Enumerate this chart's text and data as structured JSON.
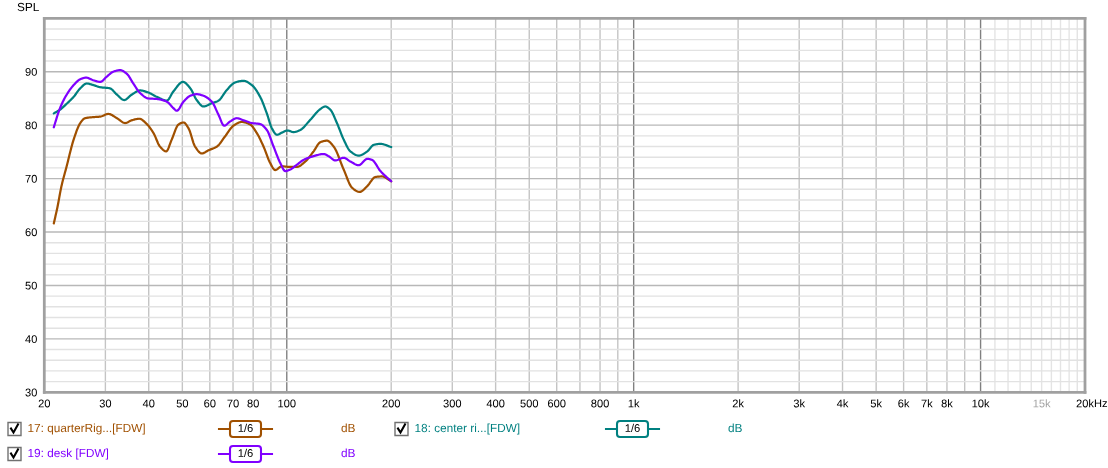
{
  "chart_data": {
    "type": "line",
    "ylabel": "SPL",
    "xlabel": "Hz",
    "xlim": [
      20,
      20000
    ],
    "ylim": [
      30,
      100
    ],
    "log": "x",
    "grid": true,
    "legend": "bottom",
    "xticks": [
      20,
      30,
      40,
      50,
      60,
      70,
      80,
      {
        "value": 90,
        "label": null
      },
      100,
      200,
      300,
      400,
      500,
      600,
      {
        "value": 700,
        "label": null
      },
      800,
      {
        "value": 900,
        "label": null
      },
      {
        "value": 1000,
        "label": "1k"
      },
      {
        "value": 2000,
        "label": "2k"
      },
      {
        "value": 3000,
        "label": "3k"
      },
      {
        "value": 4000,
        "label": "4k"
      },
      {
        "value": 5000,
        "label": "5k"
      },
      {
        "value": 6000,
        "label": "6k"
      },
      {
        "value": 7000,
        "label": "7k"
      },
      {
        "value": 8000,
        "label": "8k"
      },
      {
        "value": 9000,
        "label": null
      },
      {
        "value": 10000,
        "label": "10k"
      },
      {
        "value": 11000,
        "label": null
      },
      {
        "value": 12000,
        "label": null
      },
      {
        "value": 13000,
        "label": null
      },
      {
        "value": 14000,
        "label": null
      },
      {
        "value": 15000,
        "label": "15k"
      },
      {
        "value": 16000,
        "label": null
      },
      {
        "value": 17000,
        "label": null
      },
      {
        "value": 18000,
        "label": null
      },
      {
        "value": 19000,
        "label": null
      },
      {
        "value": 20000,
        "label": "20k"
      }
    ],
    "yticks": [
      30,
      {
        "value": 32,
        "label": null
      },
      {
        "value": 34,
        "label": null
      },
      {
        "value": 36,
        "label": null
      },
      {
        "value": 38,
        "label": null
      },
      40,
      {
        "value": 42,
        "label": null
      },
      {
        "value": 44,
        "label": null
      },
      {
        "value": 46,
        "label": null
      },
      {
        "value": 48,
        "label": null
      },
      50,
      {
        "value": 52,
        "label": null
      },
      {
        "value": 54,
        "label": null
      },
      {
        "value": 56,
        "label": null
      },
      {
        "value": 58,
        "label": null
      },
      60,
      {
        "value": 62,
        "label": null
      },
      {
        "value": 64,
        "label": null
      },
      {
        "value": 66,
        "label": null
      },
      {
        "value": 68,
        "label": null
      },
      70,
      {
        "value": 72,
        "label": null
      },
      {
        "value": 74,
        "label": null
      },
      {
        "value": 76,
        "label": null
      },
      {
        "value": 78,
        "label": null
      },
      80,
      {
        "value": 82,
        "label": null
      },
      {
        "value": 84,
        "label": null
      },
      {
        "value": 86,
        "label": null
      },
      {
        "value": 88,
        "label": null
      },
      90,
      {
        "value": 92,
        "label": null
      },
      {
        "value": 94,
        "label": null
      },
      {
        "value": 96,
        "label": null
      },
      {
        "value": 98,
        "label": null
      }
    ],
    "annotations": [
      "1/6",
      "dB",
      "1/6",
      "dB",
      "1/6",
      "dB"
    ],
    "series": [
      {
        "name": "17: quarterRig...[FDW]",
        "color": "#a05000",
        "x": [
          21.3,
          21.8,
          22.4,
          23.2,
          24.3,
          25.4,
          26.2,
          27.7,
          29.0,
          30.6,
          32.4,
          34.2,
          35.7,
          37.6,
          39.5,
          41.3,
          43.1,
          44.9,
          46.6,
          48.7,
          50.4,
          52.1,
          54.4,
          56.9,
          59.5,
          62.9,
          66.4,
          70.2,
          74.2,
          78.5,
          82.0,
          85.7,
          89.6,
          92.6,
          96.8,
          101.2,
          107.0,
          113.1,
          119.5,
          124.9,
          130.6,
          136.5,
          145.9,
          154.2,
          162.2,
          170.7,
          180.0,
          188.2,
          200
        ],
        "values": [
          61.6,
          64.5,
          68.5,
          72.3,
          77.3,
          80.4,
          81.3,
          81.5,
          81.6,
          82.1,
          81.3,
          80.4,
          80.9,
          81.2,
          80.2,
          78.5,
          76.0,
          75.1,
          77.3,
          80.1,
          80.5,
          79.4,
          76.0,
          74.7,
          75.3,
          76.0,
          77.9,
          79.9,
          80.6,
          80.1,
          78.5,
          76.0,
          72.9,
          71.6,
          72.3,
          72.2,
          72.2,
          73.2,
          75.1,
          76.8,
          77.1,
          76.0,
          71.7,
          68.3,
          67.5,
          68.6,
          70.3,
          70.4,
          69.5
        ]
      },
      {
        "name": "18: center ri...[FDW]",
        "color": "#008080",
        "x": [
          21.3,
          22.2,
          23.2,
          24.3,
          25.4,
          26.5,
          27.7,
          29.0,
          30.9,
          32.4,
          34.0,
          35.7,
          37.8,
          39.9,
          42.2,
          45.1,
          47.1,
          50.2,
          52.7,
          55.0,
          57.5,
          60.8,
          63.6,
          67.2,
          71.0,
          75.1,
          79.3,
          83.8,
          87.6,
          90.6,
          93.7,
          96.8,
          100.5,
          104.6,
          109.4,
          116.9,
          124.9,
          129.1,
          133.5,
          139.5,
          145.9,
          152.5,
          161.2,
          170.7,
          178.0,
          186.2,
          200
        ],
        "values": [
          82.2,
          82.9,
          84.0,
          85.3,
          86.9,
          87.8,
          87.5,
          87.1,
          86.9,
          85.7,
          84.7,
          85.7,
          86.5,
          86.1,
          85.3,
          84.6,
          86.3,
          88.1,
          86.9,
          84.7,
          83.5,
          84.1,
          84.6,
          86.6,
          88.0,
          88.3,
          87.5,
          85.3,
          82.2,
          79.4,
          78.2,
          78.6,
          79.0,
          78.7,
          79.1,
          81.0,
          83.0,
          83.5,
          82.9,
          80.4,
          77.3,
          75.1,
          74.3,
          75.1,
          76.3,
          76.5,
          75.9
        ]
      },
      {
        "name": "19: desk [FDW]",
        "color": "#8000ff",
        "x": [
          21.3,
          22.2,
          23.2,
          24.3,
          25.4,
          26.4,
          27.7,
          29.0,
          30.3,
          31.6,
          33.1,
          34.6,
          36.1,
          37.8,
          39.9,
          42.2,
          45.1,
          47.1,
          48.2,
          50.4,
          52.7,
          55.0,
          57.5,
          60.8,
          63.6,
          66.0,
          68.7,
          71.8,
          75.1,
          79.3,
          83.8,
          87.6,
          91.6,
          95.8,
          99.0,
          102.3,
          107.0,
          111.8,
          119.5,
          127.7,
          132.0,
          138.0,
          145.9,
          152.5,
          161.2,
          170.7,
          176.1,
          186.2,
          200
        ],
        "values": [
          79.6,
          83.2,
          85.7,
          87.5,
          88.6,
          88.9,
          88.4,
          88.1,
          89.1,
          90.0,
          90.3,
          89.6,
          87.8,
          86.0,
          85.0,
          84.9,
          84.4,
          83.2,
          82.7,
          84.4,
          85.5,
          85.8,
          85.5,
          84.4,
          81.9,
          79.9,
          80.7,
          81.3,
          80.9,
          80.4,
          80.2,
          79.1,
          76.0,
          72.9,
          71.4,
          71.7,
          72.6,
          73.5,
          74.2,
          74.6,
          74.2,
          73.4,
          73.9,
          73.2,
          72.5,
          73.7,
          73.5,
          71.4,
          69.5
        ]
      }
    ]
  }
}
